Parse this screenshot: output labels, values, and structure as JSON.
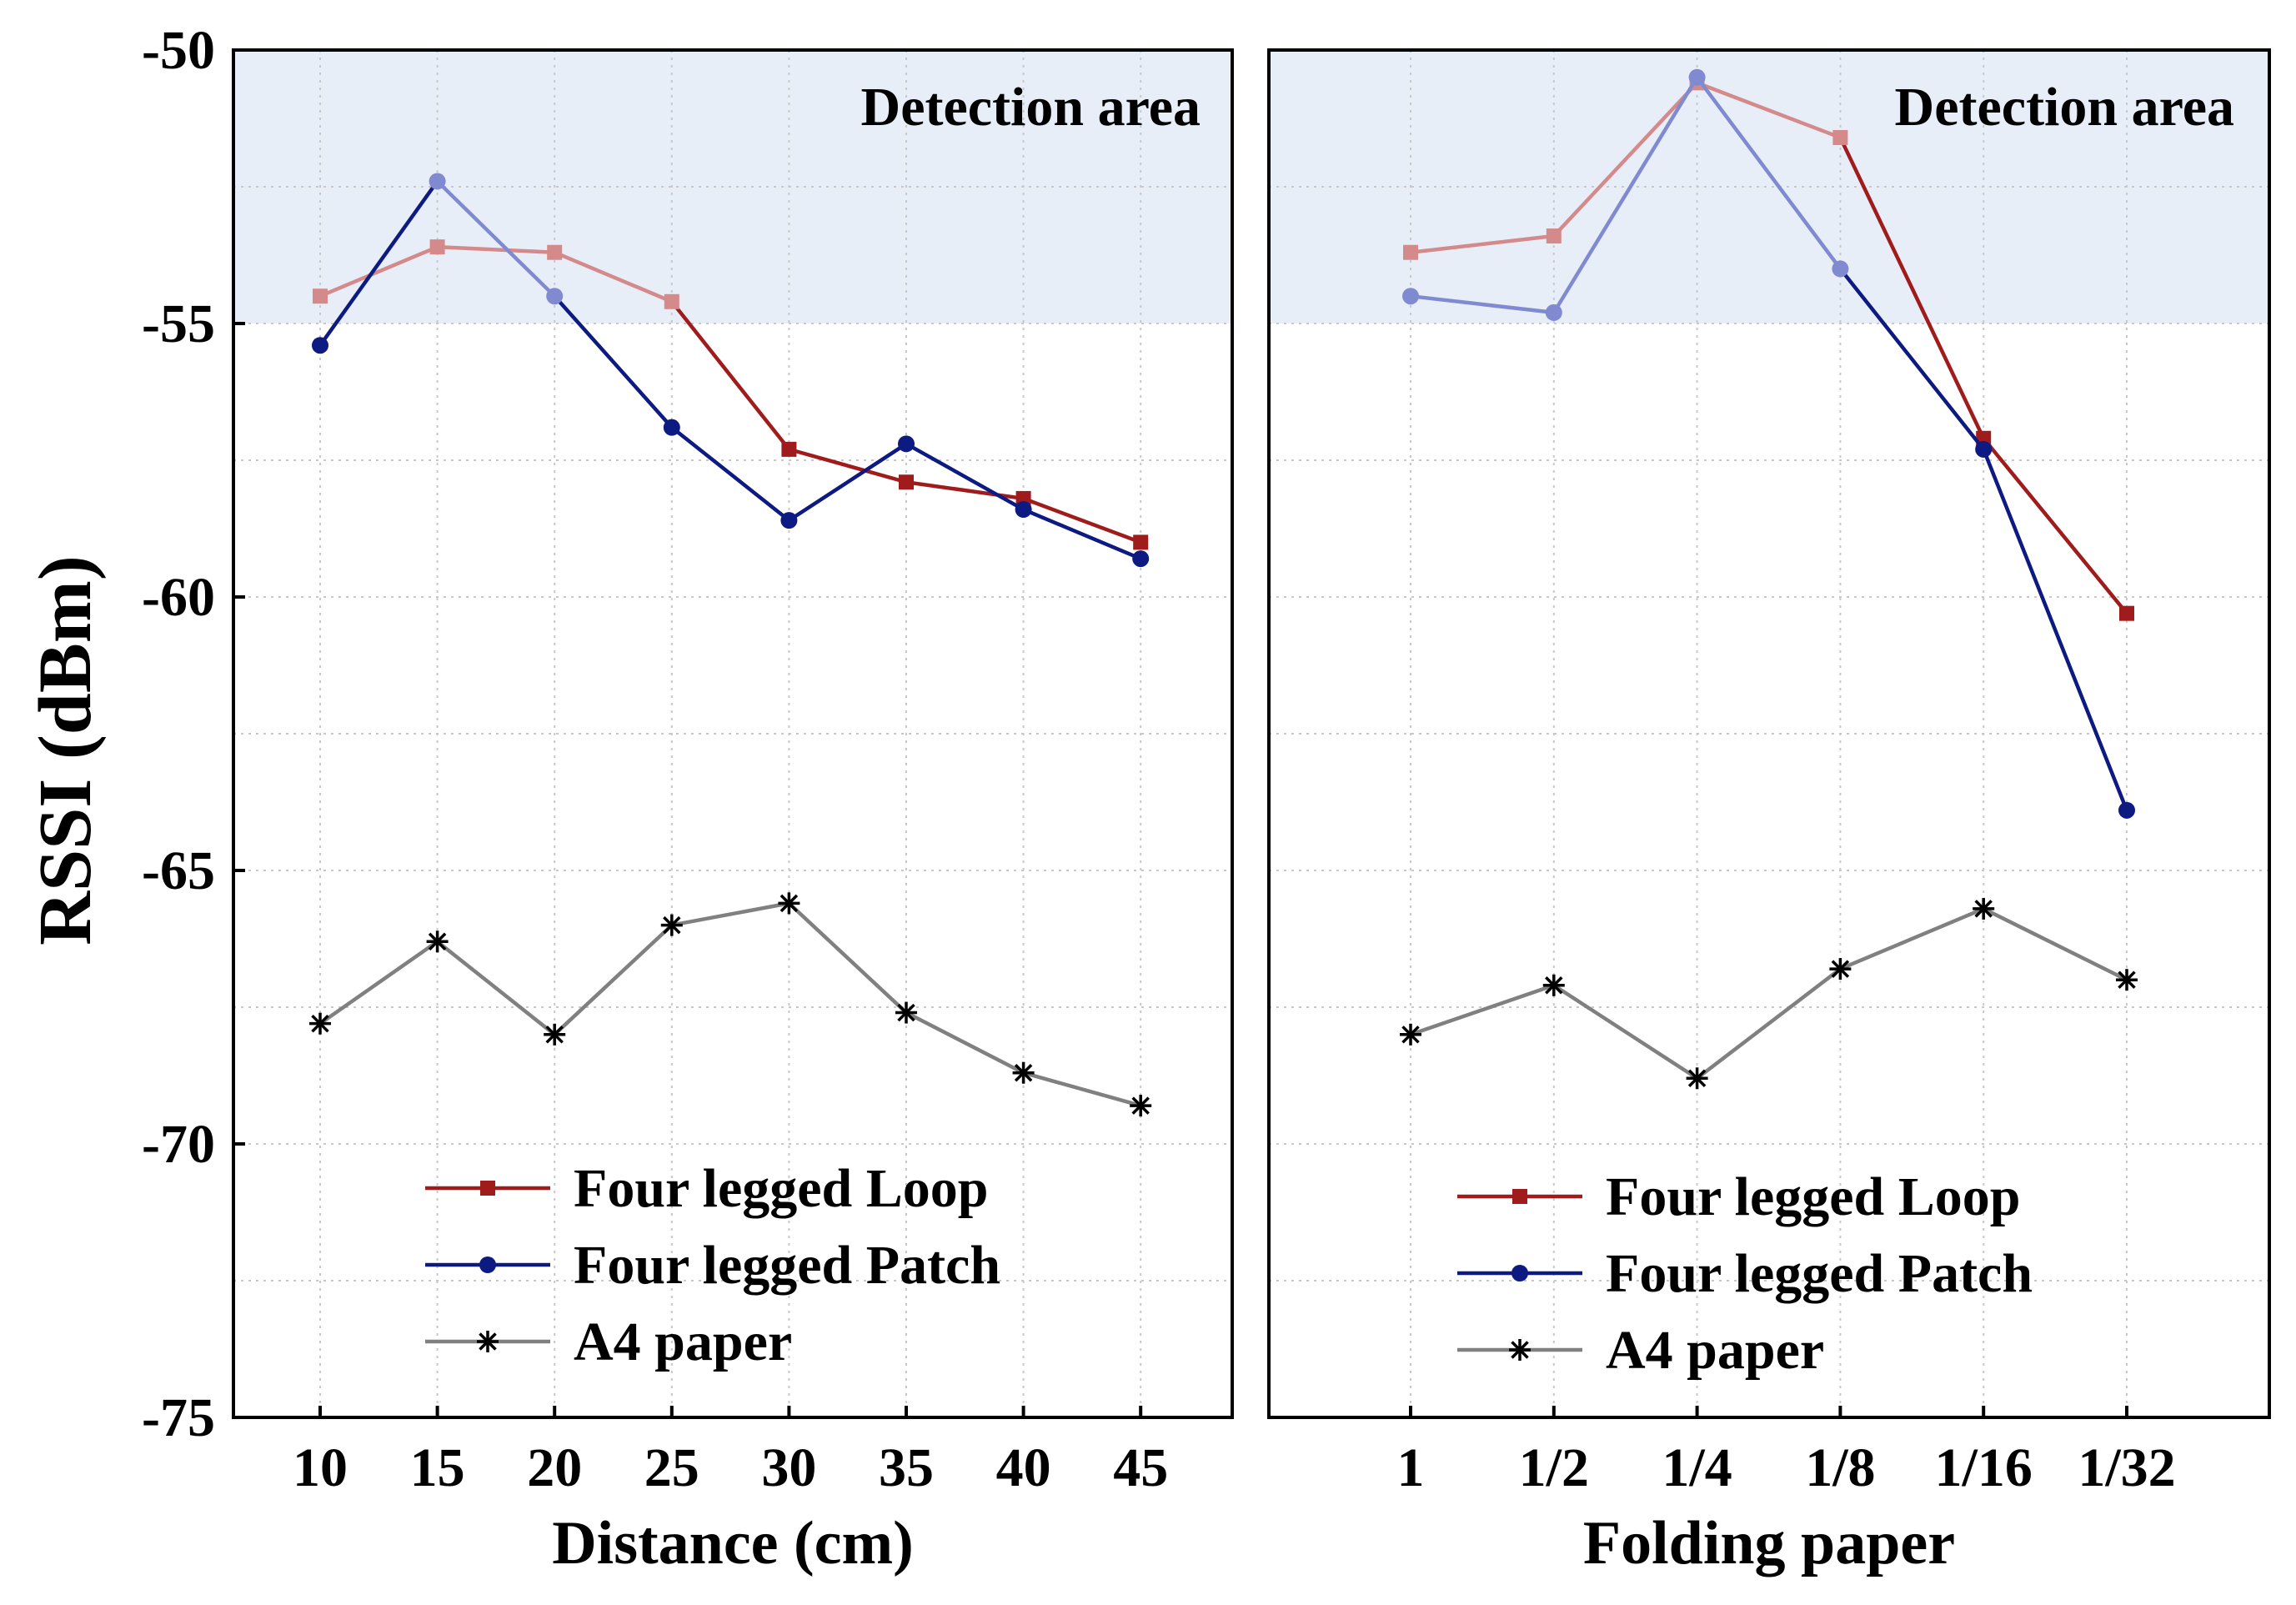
{
  "ylabel": "RSSI (dBm)",
  "colors": {
    "detection_area": "#e8eef8",
    "loop": "#a01c1c",
    "loop_light": "#d48a8a",
    "patch": "#0d1a82",
    "patch_light": "#7f8ad0",
    "a4": "#808080",
    "grid": "#c8c8c8"
  },
  "chart_data": [
    {
      "type": "line",
      "xlabel": "Distance (cm)",
      "ylabel": "RSSI (dBm)",
      "categories": [
        "10",
        "15",
        "20",
        "25",
        "30",
        "35",
        "40",
        "45"
      ],
      "ylim": [
        -75,
        -50
      ],
      "yticks": [
        -50,
        -55,
        -60,
        -65,
        -70,
        -75
      ],
      "grid": true,
      "shaded_region": {
        "label": "Detection area",
        "ymin": -55,
        "ymax": -50
      },
      "legend_position": "bottom-center",
      "series": [
        {
          "name": "Four legged Loop",
          "marker": "square",
          "values": [
            -54.5,
            -53.6,
            -53.7,
            -54.6,
            -57.3,
            -57.9,
            -58.2,
            -59.0
          ]
        },
        {
          "name": "Four legged Patch",
          "marker": "circle",
          "values": [
            -55.4,
            -52.4,
            -54.5,
            -56.9,
            -58.6,
            -57.2,
            -58.4,
            -59.3
          ]
        },
        {
          "name": "A4 paper",
          "marker": "asterisk",
          "values": [
            -67.8,
            -66.3,
            -68.0,
            -66.0,
            -65.6,
            -67.6,
            -68.7,
            -69.3
          ]
        }
      ]
    },
    {
      "type": "line",
      "xlabel": "Folding paper",
      "categories": [
        "1",
        "1/2",
        "1/4",
        "1/8",
        "1/16",
        "1/32"
      ],
      "ylim": [
        -75,
        -50
      ],
      "grid": true,
      "shaded_region": {
        "label": "Detection area",
        "ymin": -55,
        "ymax": -50
      },
      "legend_position": "bottom-center",
      "series": [
        {
          "name": "Four legged Loop",
          "marker": "square",
          "values": [
            -53.7,
            -53.4,
            -50.6,
            -51.6,
            -57.1,
            -60.3
          ]
        },
        {
          "name": "Four legged Patch",
          "marker": "circle",
          "values": [
            -54.5,
            -54.8,
            -50.5,
            -54.0,
            -57.3,
            -63.9
          ]
        },
        {
          "name": "A4 paper",
          "marker": "asterisk",
          "values": [
            -68.0,
            -67.1,
            -68.8,
            -66.8,
            -65.7,
            -67.0
          ]
        }
      ]
    }
  ]
}
